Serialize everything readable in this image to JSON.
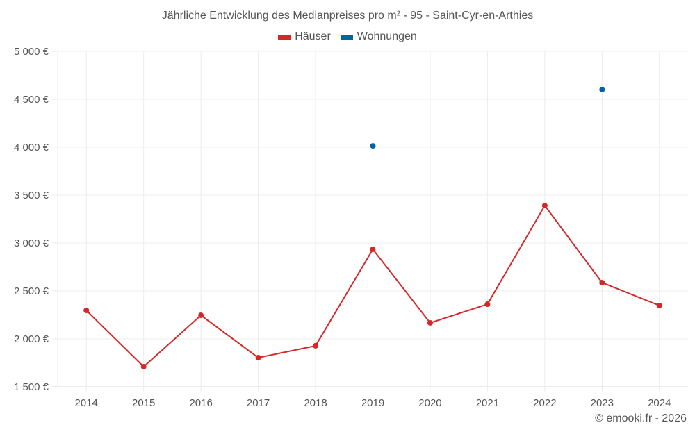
{
  "chart": {
    "title": "Jährliche Entwicklung des Medianpreises pro m² - 95 - Saint-Cyr-en-Arthies",
    "legend": [
      {
        "label": "Häuser",
        "color": "#d62728"
      },
      {
        "label": "Wohnungen",
        "color": "#0066a1"
      }
    ],
    "credit": "© emooki.fr - 2026"
  },
  "chart_data": {
    "type": "line",
    "title": "Jährliche Entwicklung des Medianpreises pro m² - 95 - Saint-Cyr-en-Arthies",
    "xlabel": "",
    "ylabel": "",
    "categories": [
      "2014",
      "2015",
      "2016",
      "2017",
      "2018",
      "2019",
      "2020",
      "2021",
      "2022",
      "2023",
      "2024"
    ],
    "ylim": [
      1500,
      5000
    ],
    "yticks": [
      1500,
      2000,
      2500,
      3000,
      3500,
      4000,
      4500,
      5000
    ],
    "ytick_labels": [
      "1 500 €",
      "2 000 €",
      "2 500 €",
      "3 000 €",
      "3 500 €",
      "4 000 €",
      "4 500 €",
      "5 000 €"
    ],
    "grid": true,
    "legend_position": "top",
    "series": [
      {
        "name": "Häuser",
        "color": "#d62728",
        "values": [
          2297,
          1710,
          2246,
          1804,
          1928,
          2935,
          2167,
          2362,
          3391,
          2587,
          2348
        ]
      },
      {
        "name": "Wohnungen",
        "color": "#0066a1",
        "values": [
          null,
          null,
          null,
          null,
          null,
          4014,
          null,
          null,
          null,
          4601,
          null
        ]
      }
    ]
  }
}
